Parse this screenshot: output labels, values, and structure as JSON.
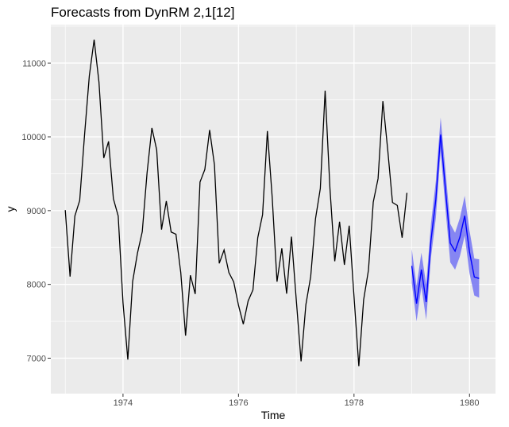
{
  "chart_data": {
    "type": "line",
    "title": "Forecasts from DynRM 2,1[12]",
    "xlabel": "Time",
    "ylabel": "y",
    "xlim": [
      1972.75,
      1980.45
    ],
    "ylim": [
      6520,
      11520
    ],
    "x_ticks": [
      {
        "value": 1974,
        "label": "1974"
      },
      {
        "value": 1976,
        "label": "1976"
      },
      {
        "value": 1978,
        "label": "1978"
      },
      {
        "value": 1980,
        "label": "1980"
      }
    ],
    "y_ticks": [
      {
        "value": 7000,
        "label": "7000"
      },
      {
        "value": 8000,
        "label": "8000"
      },
      {
        "value": 9000,
        "label": "9000"
      },
      {
        "value": 10000,
        "label": "10000"
      },
      {
        "value": 11000,
        "label": "11000"
      }
    ],
    "grid": true,
    "colors": {
      "panel_background": "#ebebeb",
      "grid": "#ffffff",
      "series": "#000000",
      "forecast": "#0000ff",
      "interval": "#7b7bf3"
    },
    "series": [
      {
        "start": 1973.0,
        "step": 0.083333,
        "values": [
          9007,
          8106,
          8928,
          9137,
          10017,
          10826,
          11317,
          10744,
          9713,
          9938,
          9161,
          8927,
          7750,
          6981,
          8038,
          8422,
          8714,
          9512,
          10120,
          9823,
          8743,
          9129,
          8710,
          8680,
          8162,
          7306,
          8124,
          7870,
          9387,
          9556,
          10093,
          9620,
          8285,
          8466,
          8160,
          8034,
          7717,
          7461,
          7776,
          7925,
          8634,
          8945,
          10078,
          9179,
          8037,
          8488,
          7874,
          8647,
          7792,
          6957,
          7726,
          8106,
          8890,
          9299,
          10625,
          9302,
          8314,
          8850,
          8265,
          8796,
          7836,
          6892,
          7791,
          8192,
          9115,
          9434,
          10484,
          9827,
          9110,
          9070,
          8633,
          9240
        ]
      }
    ],
    "forecast": {
      "start": 1979.0,
      "step": 0.083333,
      "mean": [
        8250,
        7740,
        8200,
        7760,
        8600,
        9150,
        10030,
        9290,
        8560,
        8450,
        8640,
        8930,
        8440,
        8100,
        8080
      ],
      "lower": [
        8020,
        7500,
        7970,
        7520,
        8370,
        8900,
        9800,
        9030,
        8300,
        8200,
        8380,
        8660,
        8150,
        7850,
        7820
      ],
      "upper": [
        8480,
        7980,
        8430,
        8000,
        8830,
        9400,
        10260,
        9550,
        8820,
        8700,
        8900,
        9200,
        8730,
        8350,
        8340
      ]
    }
  }
}
